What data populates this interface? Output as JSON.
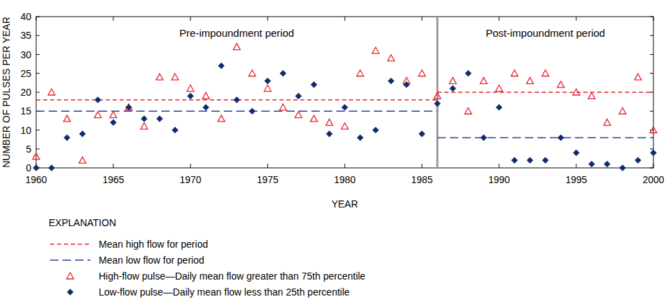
{
  "chart_data": {
    "type": "scatter",
    "x_label": "YEAR",
    "y_label": "NUMBER OF PULSES PER YEAR",
    "legend_title": "EXPLANATION",
    "legend": "bottom-left",
    "grid": false,
    "x": [
      1960,
      1961,
      1962,
      1963,
      1964,
      1965,
      1966,
      1967,
      1968,
      1969,
      1970,
      1971,
      1972,
      1973,
      1974,
      1975,
      1976,
      1977,
      1978,
      1979,
      1980,
      1981,
      1982,
      1983,
      1984,
      1985,
      1986,
      1987,
      1988,
      1989,
      1990,
      1991,
      1992,
      1993,
      1994,
      1995,
      1996,
      1997,
      1998,
      1999,
      2000
    ],
    "xlim": [
      1960,
      2000
    ],
    "xticks": [
      1960,
      1965,
      1970,
      1975,
      1980,
      1985,
      1990,
      1995,
      2000
    ],
    "ylim": [
      0,
      40
    ],
    "yticks": [
      0,
      5,
      10,
      15,
      20,
      25,
      30,
      35,
      40
    ],
    "periods": [
      {
        "label": "Pre-impoundment period",
        "start": 1960,
        "end": 1986
      },
      {
        "label": "Post-impoundment period",
        "start": 1986,
        "end": 2000
      }
    ],
    "series": [
      {
        "name": "Mean high flow for period",
        "type": "line",
        "color": "#e8202a",
        "line_style": "dashed",
        "x": [
          1960,
          1986,
          1986,
          1986,
          2000
        ],
        "values": [
          18,
          18,
          null,
          20,
          20
        ]
      },
      {
        "name": "Mean low flow for period",
        "type": "line",
        "color": "#1f3f99",
        "line_style": "longdash",
        "x": [
          1960,
          1986,
          1986,
          1986,
          2000
        ],
        "values": [
          15,
          15,
          null,
          8,
          8
        ]
      },
      {
        "name": "High-flow pulse—Daily mean flow greater than 75th percentile",
        "type": "scatter",
        "color": "#e8202a",
        "marker": "triangle",
        "values": [
          3,
          20,
          13,
          2,
          14,
          14,
          16,
          11,
          24,
          24,
          21,
          19,
          13,
          32,
          25,
          21,
          16,
          14,
          13,
          12,
          11,
          25,
          31,
          29,
          23,
          25,
          19,
          23,
          15,
          23,
          21,
          25,
          23,
          25,
          22,
          20,
          19,
          12,
          15,
          24,
          10
        ]
      },
      {
        "name": "Low-flow pulse—Daily mean flow less than 25th percentile",
        "type": "scatter",
        "color": "#102a70",
        "marker": "diamond",
        "values": [
          0,
          0,
          8,
          9,
          18,
          12,
          16,
          13,
          13,
          10,
          19,
          16,
          27,
          18,
          15,
          23,
          25,
          19,
          22,
          9,
          16,
          8,
          10,
          23,
          22,
          9,
          17,
          21,
          25,
          8,
          16,
          2,
          2,
          2,
          8,
          4,
          1,
          1,
          0,
          2,
          4
        ]
      }
    ]
  }
}
